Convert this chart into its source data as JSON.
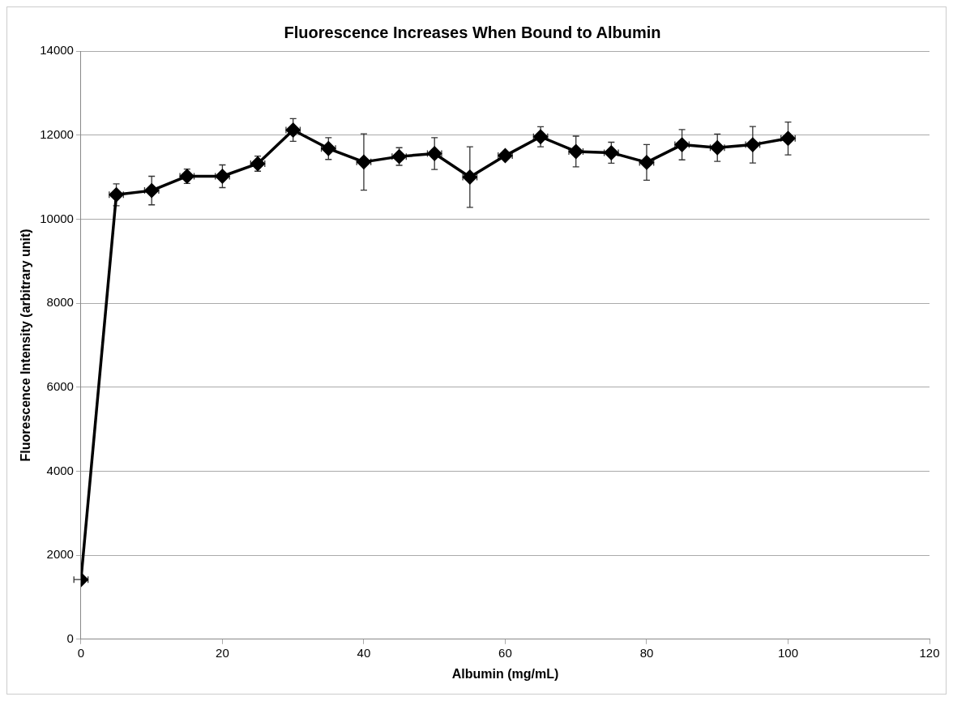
{
  "chart_data": {
    "type": "line",
    "title": "Fluorescence Increases When Bound to Albumin",
    "xlabel": "Albumin (mg/mL)",
    "ylabel": "Fluorescence Intensity (arbitrary unit)",
    "x": [
      0,
      5,
      10,
      15,
      20,
      25,
      30,
      35,
      40,
      45,
      50,
      55,
      60,
      65,
      70,
      75,
      80,
      85,
      90,
      95,
      100
    ],
    "series": [
      {
        "color": "#000000",
        "values": [
          1420,
          10580,
          10680,
          11020,
          11020,
          11320,
          12120,
          11680,
          11360,
          11490,
          11560,
          11000,
          11510,
          11960,
          11610,
          11580,
          11350,
          11770,
          11700,
          11770,
          11920
        ],
        "errors": [
          null,
          260,
          340,
          170,
          270,
          180,
          270,
          260,
          670,
          210,
          380,
          720,
          null,
          240,
          365,
          250,
          425,
          360,
          325,
          435,
          390
        ],
        "xerrors": [
          1,
          1,
          1,
          1,
          1,
          1,
          1,
          1,
          1,
          1,
          1,
          1,
          1,
          1,
          1,
          1,
          1,
          1,
          1,
          1,
          1
        ]
      }
    ],
    "xlim": [
      0,
      120
    ],
    "xticks": [
      0,
      20,
      40,
      60,
      80,
      100,
      120
    ],
    "ylim": [
      0,
      14000
    ],
    "yticks": [
      0,
      2000,
      4000,
      6000,
      8000,
      10000,
      12000,
      14000
    ],
    "grid": "y",
    "marker": "diamond",
    "line_style": "solid"
  }
}
